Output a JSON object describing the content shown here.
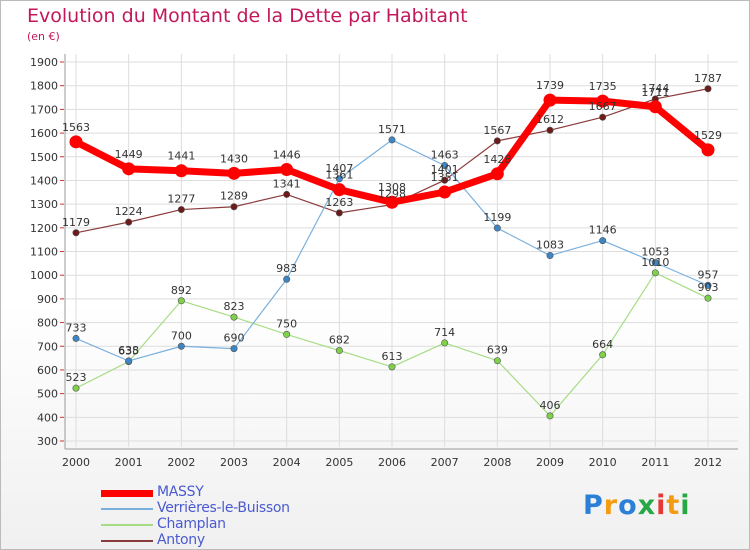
{
  "header": {
    "title": "Evolution du Montant de la Dette par Habitant",
    "subtitle": "(en €)"
  },
  "logo": {
    "text": "Proxiti"
  },
  "colors": {
    "title": "#c2185b",
    "legend_text": "#4a5ad1",
    "grid": "#dddddd",
    "axis": "#999999"
  },
  "chart_data": {
    "type": "line",
    "title": "Evolution du Montant de la Dette par Habitant",
    "subtitle": "(en €)",
    "x": [
      "2000",
      "2001",
      "2002",
      "2003",
      "2004",
      "2005",
      "2006",
      "2007",
      "2008",
      "2009",
      "2010",
      "2011",
      "2012"
    ],
    "ylim": [
      300,
      1900
    ],
    "yticks": [
      300,
      400,
      500,
      600,
      700,
      800,
      900,
      1000,
      1100,
      1200,
      1300,
      1400,
      1500,
      1600,
      1700,
      1800,
      1900
    ],
    "grid": true,
    "legend_position": "bottom-left",
    "series": [
      {
        "name": "Antony",
        "color": "#6d1a1a",
        "line_color": "#8a3b3b",
        "width": 1.2,
        "values": [
          1179,
          1224,
          1277,
          1289,
          1341,
          1263,
          1298,
          1401,
          1567,
          1612,
          1667,
          1744,
          1787
        ],
        "labels": [
          "1179",
          "1224",
          "1277",
          "1289",
          "1341",
          "1263",
          "1298",
          "1401",
          "1567",
          "1612",
          "1667",
          "1744",
          "1787"
        ]
      },
      {
        "name": "Champlan",
        "color": "#7fd14a",
        "line_color": "#a6dd84",
        "width": 1.2,
        "values": [
          523,
          635,
          892,
          823,
          750,
          682,
          613,
          714,
          639,
          406,
          664,
          1010,
          903
        ],
        "labels": [
          "523",
          "635",
          "892",
          "823",
          "750",
          "682",
          "613",
          "714",
          "639",
          "406",
          "664",
          "1010",
          "903"
        ]
      },
      {
        "name": "Verrières-le-Buisson",
        "color": "#3d86c6",
        "line_color": "#7ab0de",
        "width": 1.2,
        "values": [
          733,
          638,
          700,
          690,
          983,
          1407,
          1571,
          1463,
          1199,
          1083,
          1146,
          1053,
          957
        ],
        "labels": [
          "733",
          "638",
          "700",
          "690",
          "983",
          "1407",
          "1571",
          "1463",
          "1199",
          "1083",
          "1146",
          "1053",
          "957"
        ]
      },
      {
        "name": "MASSY",
        "color": "#ff0000",
        "line_color": "#ff0000",
        "width": 7,
        "values": [
          1563,
          1449,
          1441,
          1430,
          1446,
          1361,
          1308,
          1351,
          1428,
          1739,
          1735,
          1711,
          1529
        ],
        "labels": [
          "1563",
          "1449",
          "1441",
          "1430",
          "1446",
          "1361",
          "1308",
          "1351",
          "1428",
          "1739",
          "1735",
          "1711",
          "1529"
        ]
      }
    ]
  },
  "legend": [
    {
      "name": "MASSY",
      "color": "#ff0000",
      "thickness": 7
    },
    {
      "name": "Verrières-le-Buisson",
      "color": "#7ab0de",
      "thickness": 2
    },
    {
      "name": "Champlan",
      "color": "#a6dd84",
      "thickness": 2
    },
    {
      "name": "Antony",
      "color": "#8a3b3b",
      "thickness": 2
    }
  ]
}
